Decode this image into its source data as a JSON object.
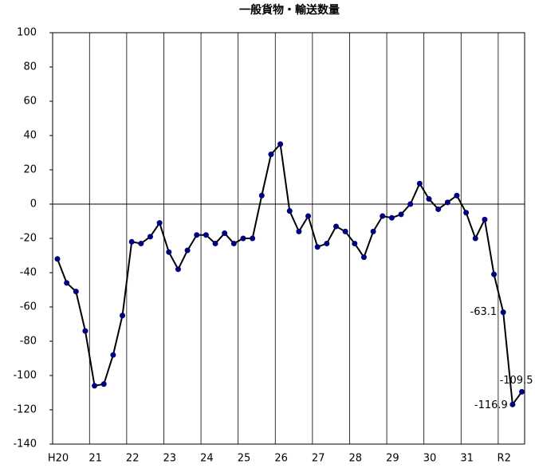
{
  "chart_data": {
    "type": "line",
    "title": "一般貨物・輸送数量",
    "categories": [
      "H20",
      null,
      null,
      null,
      "21",
      null,
      null,
      null,
      "22",
      null,
      null,
      null,
      "23",
      null,
      null,
      null,
      "24",
      null,
      null,
      null,
      "25",
      null,
      null,
      null,
      "26",
      null,
      null,
      null,
      "27",
      null,
      null,
      null,
      "28",
      null,
      null,
      null,
      "29",
      null,
      null,
      null,
      "30",
      null,
      null,
      null,
      "31",
      null,
      null,
      null,
      "R2",
      null,
      null
    ],
    "series": [
      {
        "color": "#000080",
        "values": [
          -32,
          -46,
          -51,
          -74,
          -106,
          -105,
          -88,
          -65,
          -22,
          -23,
          -19,
          -11,
          -28,
          -38,
          -27,
          -18,
          -18,
          -23,
          -17,
          -23,
          -20,
          -20,
          5,
          29,
          35,
          -4,
          -16,
          -7,
          -25,
          -23,
          -13,
          -16,
          -23,
          -31,
          -16,
          -7,
          -8,
          -6,
          0,
          12,
          3,
          -3,
          1,
          5,
          -5,
          -20,
          -9,
          -41,
          -63.1,
          -116.9,
          -109.5
        ],
        "value_labels": [
          null,
          null,
          null,
          null,
          null,
          null,
          null,
          null,
          null,
          null,
          null,
          null,
          null,
          null,
          null,
          null,
          null,
          null,
          null,
          null,
          null,
          null,
          null,
          null,
          null,
          null,
          null,
          null,
          null,
          null,
          null,
          null,
          null,
          null,
          null,
          null,
          null,
          null,
          null,
          null,
          null,
          null,
          null,
          null,
          null,
          null,
          null,
          null,
          "-63.1",
          "-116.9",
          "-109.5"
        ]
      }
    ],
    "ylim": [
      -140,
      100
    ],
    "yticks": [
      -140,
      -120,
      -100,
      -80,
      -60,
      -40,
      -20,
      0,
      20,
      40,
      60,
      80,
      100
    ]
  }
}
